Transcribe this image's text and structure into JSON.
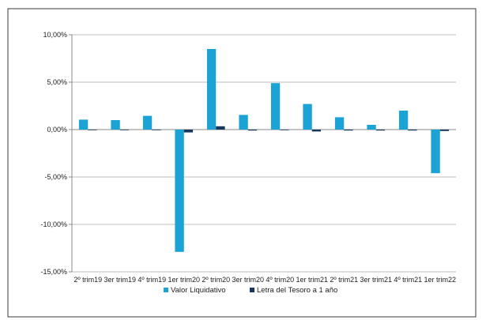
{
  "chart_data": {
    "type": "bar",
    "title": "",
    "xlabel": "",
    "ylabel": "",
    "categories": [
      "2º trim19",
      "3er trim19",
      "4º trim19",
      "1er trim20",
      "2º trim20",
      "3er trim20",
      "4º trim20",
      "1er trim21",
      "2º trim21",
      "3er trim21",
      "4º trim21",
      "1er trim22"
    ],
    "series": [
      {
        "name": "Valor Liquidativo",
        "color": "#1aa3d4",
        "values": [
          1.05,
          1.0,
          1.45,
          -12.9,
          8.5,
          1.55,
          4.9,
          2.7,
          1.3,
          0.5,
          2.0,
          -4.6
        ]
      },
      {
        "name": "Letra del Tesoro a 1 año",
        "color": "#17375e",
        "values": [
          -0.05,
          -0.05,
          -0.05,
          -0.3,
          0.35,
          -0.1,
          -0.05,
          -0.2,
          -0.1,
          -0.1,
          -0.1,
          -0.15
        ]
      }
    ],
    "ylim": [
      -15,
      10
    ],
    "yticks": [
      -15,
      -10,
      -5,
      0,
      5,
      10
    ],
    "ytick_labels": [
      "-15,00%",
      "-10,00%",
      "-5,00%",
      "0,00%",
      "5,00%",
      "10,00%"
    ],
    "grid": true,
    "legend": "bottom"
  }
}
